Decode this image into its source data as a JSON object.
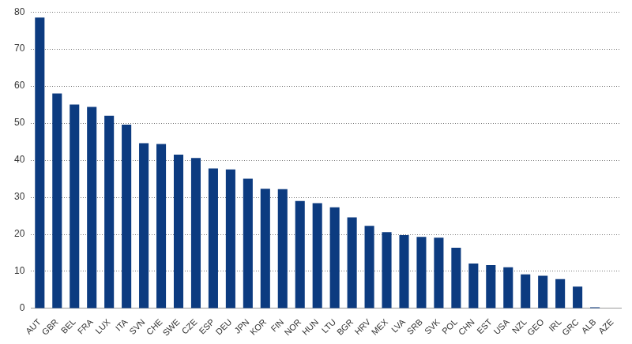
{
  "chart_data": {
    "type": "bar",
    "categories": [
      "AUT",
      "GBR",
      "BEL",
      "FRA",
      "LUX",
      "ITA",
      "SVN",
      "CHE",
      "SWE",
      "CZE",
      "ESP",
      "DEU",
      "JPN",
      "KOR",
      "FIN",
      "NOR",
      "HUN",
      "LTU",
      "BGR",
      "HRV",
      "MEX",
      "LVA",
      "SRB",
      "SVK",
      "POL",
      "CHN",
      "EST",
      "USA",
      "NZL",
      "GEO",
      "IRL",
      "GRC",
      "ALB",
      "AZE"
    ],
    "values": [
      78.5,
      58,
      55,
      54.4,
      52,
      49.6,
      44.6,
      44.4,
      41.5,
      40.6,
      37.8,
      37.5,
      35,
      32.3,
      32.2,
      29,
      28.4,
      27.3,
      24.6,
      22.3,
      20.6,
      19.8,
      19.3,
      19.1,
      16.4,
      12.1,
      11.7,
      11.1,
      9.2,
      8.8,
      7.9,
      5.9,
      0.3,
      0
    ],
    "color": "#0c3b80",
    "ylim": [
      0,
      80
    ],
    "yticks": [
      0,
      10,
      20,
      30,
      40,
      50,
      60,
      70,
      80
    ],
    "grid": true
  }
}
